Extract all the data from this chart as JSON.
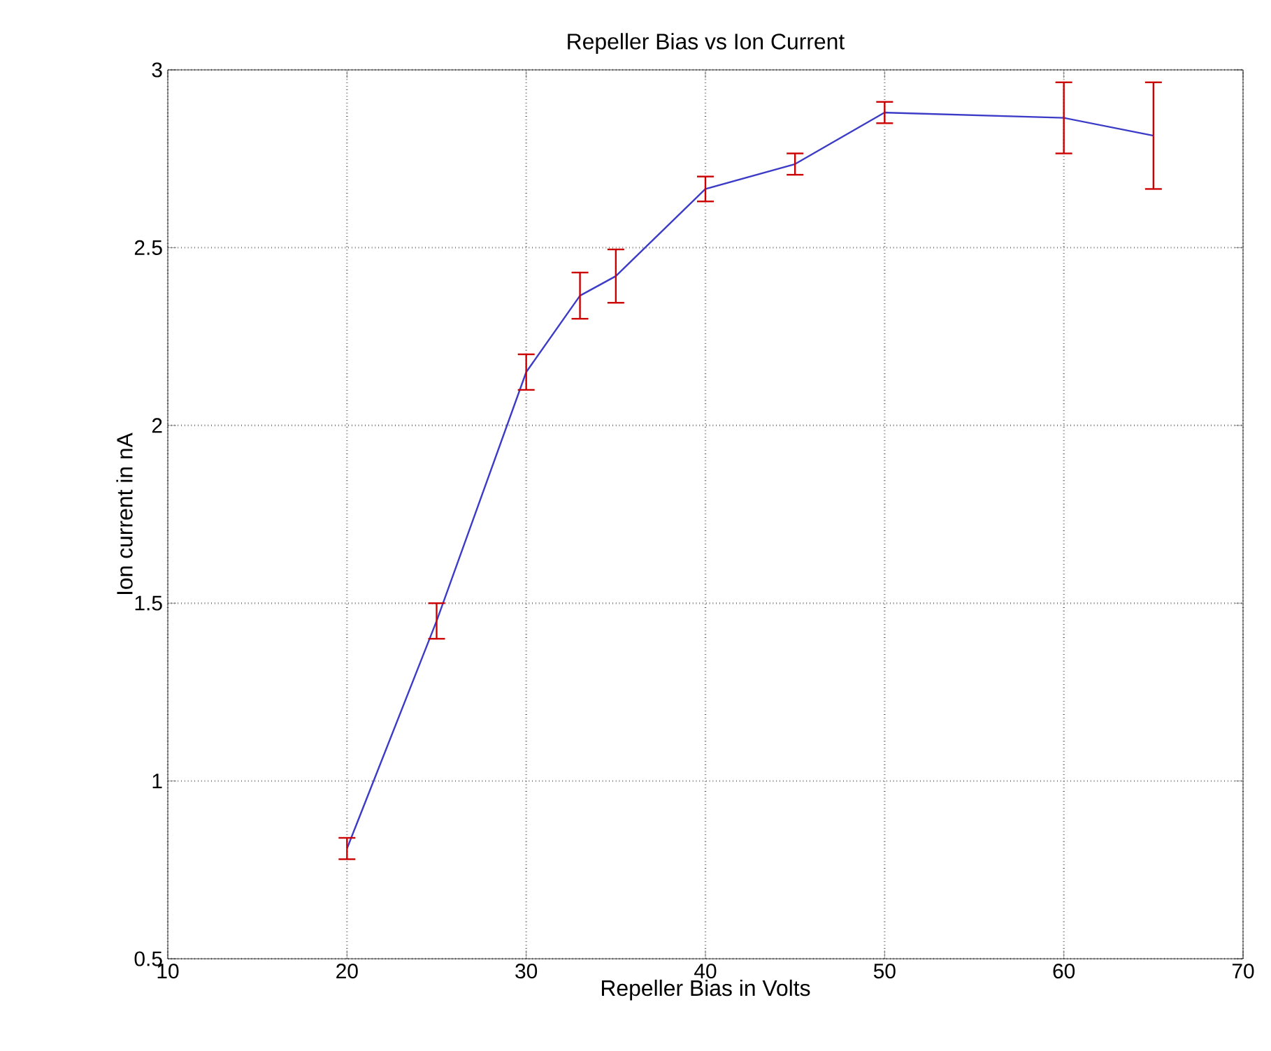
{
  "chart_data": {
    "type": "line",
    "title": "Repeller Bias vs Ion Current",
    "xlabel": "Repeller Bias in Volts",
    "ylabel": "Ion current in nA",
    "x": [
      20,
      25,
      30,
      33,
      35,
      40,
      45,
      50,
      60,
      65
    ],
    "series": [
      {
        "color": "#3b3bc8",
        "values": [
          0.81,
          1.45,
          2.15,
          2.365,
          2.42,
          2.665,
          2.735,
          2.88,
          2.865,
          2.815
        ],
        "errors": [
          0.03,
          0.05,
          0.05,
          0.065,
          0.075,
          0.035,
          0.03,
          0.03,
          0.1,
          0.15
        ]
      }
    ],
    "xlim": [
      10,
      70
    ],
    "ylim": [
      0.5,
      3
    ],
    "xticks": [
      10,
      20,
      30,
      40,
      50,
      60,
      70
    ],
    "yticks": [
      0.5,
      1,
      1.5,
      2,
      2.5,
      3
    ],
    "grid": true,
    "marker": "none",
    "line_style": "solid"
  }
}
